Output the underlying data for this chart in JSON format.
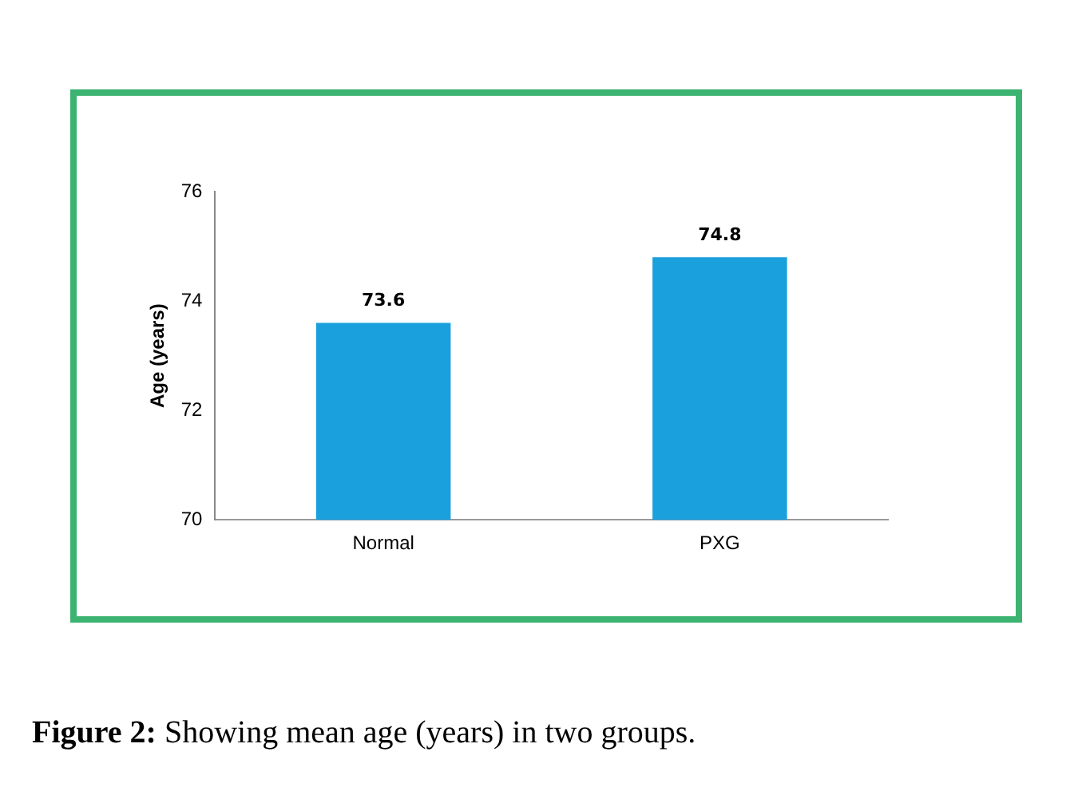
{
  "chart_data": {
    "type": "bar",
    "categories": [
      "Normal",
      "PXG"
    ],
    "values": [
      73.6,
      74.8
    ],
    "color": "#1aa0dc",
    "ylabel": "Age (years)",
    "ylim": [
      70,
      76
    ],
    "yticks": [
      70,
      72,
      74,
      76
    ],
    "data_labels": true,
    "grid": false,
    "legend": false,
    "annotations": [
      "Figure 2: Showing mean age (years) in two groups."
    ]
  }
}
